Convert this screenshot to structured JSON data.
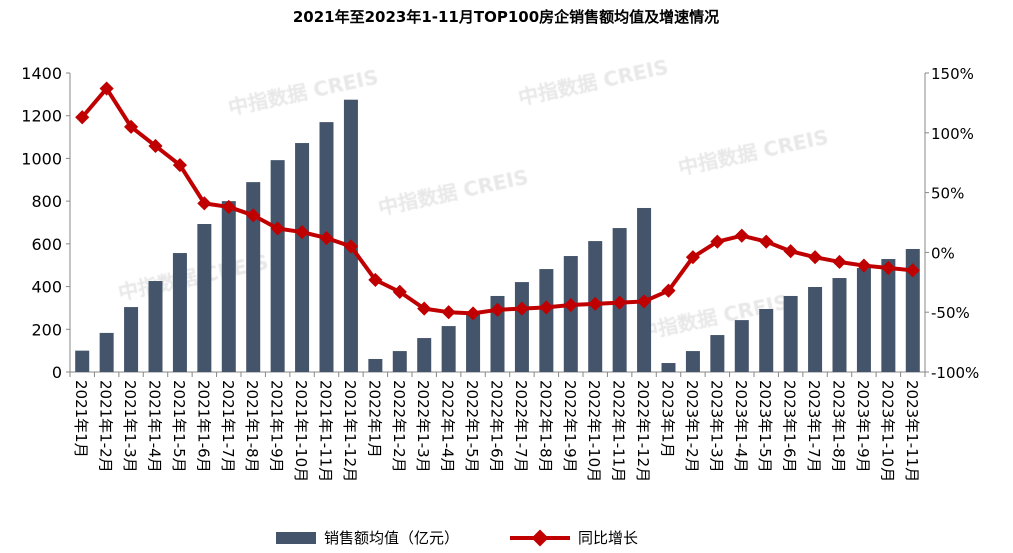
{
  "chart_data": {
    "type": "bar+line",
    "title": "2021年至2023年1-11月TOP100房企销售额均值及增速情况",
    "categories": [
      "2021年1月",
      "2021年1-2月",
      "2021年1-3月",
      "2021年1-4月",
      "2021年1-5月",
      "2021年1-6月",
      "2021年1-7月",
      "2021年1-8月",
      "2021年1-9月",
      "2021年1-10月",
      "2021年1-11月",
      "2021年1-12月",
      "2022年1月",
      "2022年1-2月",
      "2022年1-3月",
      "2022年1-4月",
      "2022年1-5月",
      "2022年1-6月",
      "2022年1-7月",
      "2022年1-8月",
      "2022年1-9月",
      "2022年1-10月",
      "2022年1-11月",
      "2022年1-12月",
      "2023年1月",
      "2023年1-2月",
      "2023年1-3月",
      "2023年1-4月",
      "2023年1-5月",
      "2023年1-6月",
      "2023年1-7月",
      "2023年1-8月",
      "2023年1-9月",
      "2023年1-10月",
      "2023年1-11月"
    ],
    "series": [
      {
        "name": "销售额均值（亿元）",
        "type": "bar",
        "axis": "left",
        "color": "#44546a",
        "values": [
          100,
          183,
          304,
          426,
          557,
          693,
          800,
          889,
          992,
          1072,
          1170,
          1275,
          61,
          98,
          159,
          215,
          278,
          356,
          421,
          482,
          543,
          613,
          674,
          768,
          42,
          98,
          173,
          243,
          295,
          356,
          398,
          440,
          487,
          529,
          576
        ]
      },
      {
        "name": "同比增长",
        "type": "line",
        "axis": "right",
        "color": "#c00000",
        "values": [
          113,
          137,
          105,
          89,
          73,
          41,
          38,
          31,
          20,
          17,
          12,
          5,
          -23,
          -33,
          -47,
          -50,
          -51,
          -48,
          -47,
          -46,
          -44,
          -43,
          -42,
          -41,
          -32,
          -4,
          9,
          14,
          9,
          1,
          -4,
          -8,
          -11,
          -13,
          -15
        ]
      }
    ],
    "left_axis": {
      "ylim": [
        0,
        1400
      ],
      "ticks": [
        "0",
        "200",
        "400",
        "600",
        "800",
        "1000",
        "1200",
        "1400"
      ]
    },
    "right_axis": {
      "ylim": [
        -100,
        150
      ],
      "ticks": [
        "-100%",
        "-50%",
        "0%",
        "50%",
        "100%",
        "150%"
      ]
    },
    "legend_position": "bottom",
    "grid": false
  },
  "watermark": "中指数据 CREIS"
}
